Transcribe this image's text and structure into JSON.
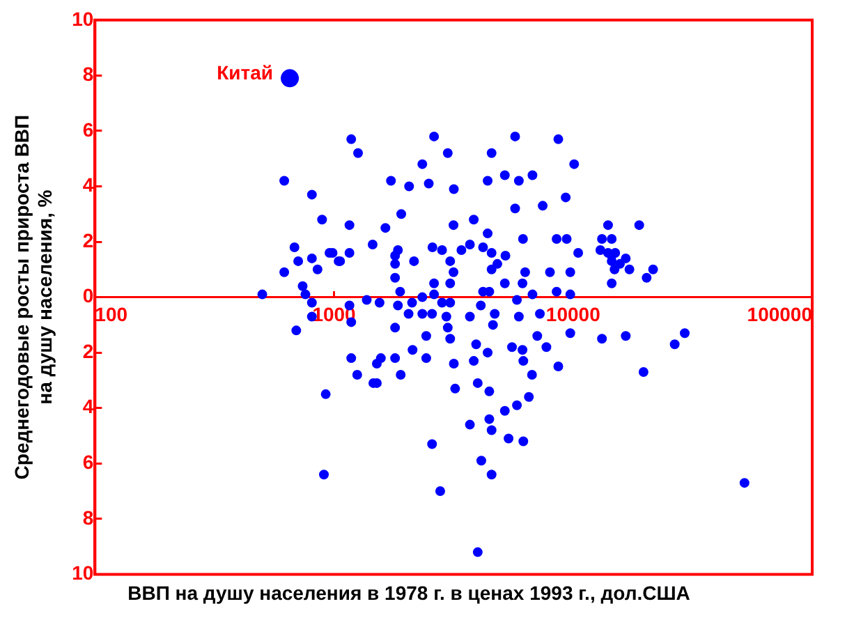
{
  "chart_data": {
    "type": "scatter",
    "xlabel": "ВВП на душу населения в 1978 г. в ценах 1993 г., дол.США",
    "ylabel": "Среднегодовые росты прироста ВВП\nна душу населения, %",
    "log": "x",
    "xlim": [
      100,
      100000
    ],
    "xticks": [
      100,
      1000,
      10000,
      100000
    ],
    "ylim": [
      -10,
      10
    ],
    "yticks": [
      {
        "value": -10,
        "label": "10"
      },
      {
        "value": -8,
        "label": "8"
      },
      {
        "value": -6,
        "label": "6"
      },
      {
        "value": -4,
        "label": "4"
      },
      {
        "value": -2,
        "label": "2"
      },
      0,
      2,
      4,
      6,
      8,
      10
    ],
    "grid": false,
    "legend": false,
    "marker": "circle",
    "series": [
      {
        "name": "Китай",
        "color": "#0000ff",
        "x": [
          653
        ],
        "values": [
          7.9
        ]
      },
      {
        "color": "#0000ff",
        "x": [
          619,
          808,
          891,
          683,
          808,
          957,
          708,
          853,
          619,
          1045,
          739,
          759,
          501,
          808,
          808,
          695,
          923,
          907,
          1180,
          1260,
          2620,
          2990,
          2340,
          1730,
          2060,
          2490,
          3170,
          4560,
          5720,
          8670,
          10100,
          4390,
          5180,
          5930,
          6760,
          9310,
          7460,
          5720,
          1910,
          1160,
          1640,
          3160,
          3840,
          4390,
          1450,
          2580,
          2830,
          3700,
          3410,
          4200,
          4560,
          5210,
          6170,
          8530,
          9400,
          10500,
          1160,
          986,
          1060,
          1800,
          1850,
          1800,
          2160,
          3060,
          3160,
          4560,
          4820,
          6300,
          8000,
          9730,
          1800,
          2620,
          3060,
          5180,
          6140,
          1890,
          2620,
          4200,
          4460,
          6760,
          8530,
          9730,
          1370,
          1550,
          2120,
          2340,
          2830,
          3060,
          5820,
          1850,
          4110,
          1160,
          1180,
          1800,
          2050,
          2340,
          2570,
          2950,
          3700,
          4700,
          5930,
          7260,
          2990,
          4620,
          2430,
          3060,
          7080,
          9730,
          2130,
          3930,
          5550,
          6140,
          7730,
          4390,
          1180,
          1570,
          1800,
          2430,
          6190,
          3840,
          1510,
          3170,
          8670,
          1250,
          1900,
          6730,
          1460,
          1510,
          3990,
          3210,
          4460,
          6530,
          5820,
          5180,
          4460,
          3700,
          4560,
          5370,
          6190,
          2570,
          4130,
          4560,
          2780,
          3990,
          14000,
          18900,
          13200,
          14500,
          13000,
          14000,
          15000,
          14500,
          16600,
          14500,
          15700,
          14900,
          17200,
          21600,
          20300,
          14500,
          13200,
          16600,
          19700,
          26600,
          29300,
          52100
        ],
        "values": [
          4.2,
          3.7,
          2.8,
          1.8,
          1.4,
          1.6,
          1.3,
          1.0,
          0.9,
          1.3,
          0.4,
          0.1,
          0.1,
          -0.2,
          -0.7,
          -1.2,
          -3.5,
          -6.4,
          5.7,
          5.2,
          5.8,
          5.2,
          4.8,
          4.2,
          4.0,
          4.1,
          3.9,
          5.2,
          5.8,
          5.7,
          4.8,
          4.2,
          4.4,
          4.2,
          4.4,
          3.6,
          3.3,
          3.2,
          3.0,
          2.6,
          2.5,
          2.6,
          2.8,
          2.3,
          1.9,
          1.8,
          1.7,
          1.9,
          1.7,
          1.8,
          1.6,
          1.5,
          2.1,
          2.1,
          2.1,
          1.6,
          1.6,
          1.6,
          1.3,
          1.5,
          1.7,
          1.2,
          1.3,
          1.3,
          0.9,
          1.0,
          1.2,
          0.9,
          0.9,
          0.9,
          0.7,
          0.5,
          0.5,
          0.5,
          0.5,
          0.2,
          0.1,
          0.2,
          0.2,
          0.1,
          0.2,
          0.1,
          -0.1,
          -0.2,
          -0.2,
          0.0,
          -0.2,
          -0.2,
          -0.1,
          -0.3,
          -0.3,
          -0.3,
          -0.9,
          -1.1,
          -0.6,
          -0.6,
          -0.6,
          -0.7,
          -0.7,
          -0.6,
          -0.7,
          -0.6,
          -1.1,
          -1.0,
          -1.4,
          -1.5,
          -1.4,
          -1.3,
          -1.9,
          -1.7,
          -1.8,
          -1.9,
          -1.8,
          -2.0,
          -2.2,
          -2.2,
          -2.2,
          -2.2,
          -2.3,
          -2.3,
          -2.4,
          -2.4,
          -2.5,
          -2.8,
          -2.8,
          -2.8,
          -3.1,
          -3.1,
          -3.1,
          -3.3,
          -3.4,
          -3.6,
          -3.9,
          -4.1,
          -4.4,
          -4.6,
          -4.8,
          -5.1,
          -5.2,
          -5.3,
          -5.9,
          -6.4,
          -7.0,
          -9.2,
          2.6,
          2.6,
          2.1,
          2.1,
          1.7,
          1.6,
          1.6,
          1.5,
          1.4,
          1.3,
          1.2,
          1.0,
          1.0,
          1.0,
          0.7,
          0.5,
          -1.5,
          -1.4,
          -2.7,
          -1.7,
          -1.3,
          -6.7
        ]
      }
    ]
  }
}
